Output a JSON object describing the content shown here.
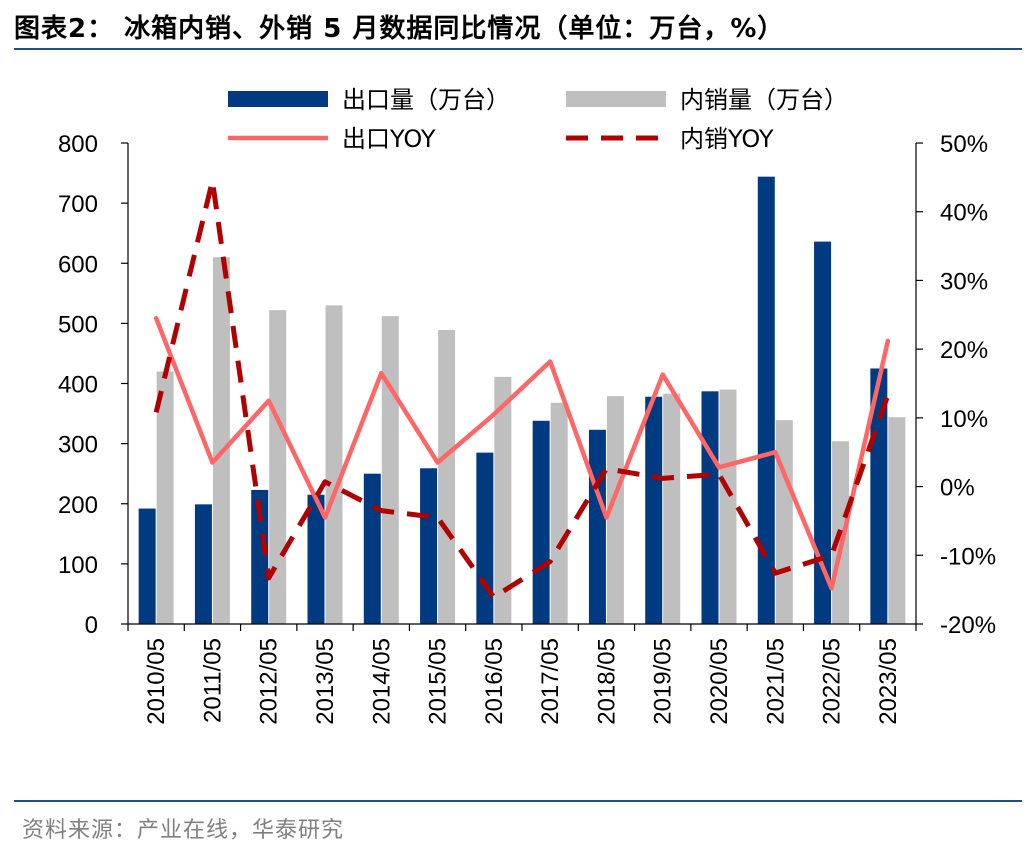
{
  "title": "图表2： 冰箱内销、外销 5 月数据同比情况（单位：万台，%）",
  "source": "资料来源：产业在线，华泰研究",
  "colors": {
    "export_bar": "#003a80",
    "domestic_bar": "#bfbfbf",
    "export_yoy": "#ff6666",
    "domestic_yoy": "#b00000",
    "rule": "#1f4e8c"
  },
  "chart_data": {
    "type": "bar",
    "categories": [
      "2010/05",
      "2011/05",
      "2012/05",
      "2013/05",
      "2014/05",
      "2015/05",
      "2016/05",
      "2017/05",
      "2018/05",
      "2019/05",
      "2020/05",
      "2021/05",
      "2022/05",
      "2023/05"
    ],
    "series": [
      {
        "name": "出口量（万台）",
        "type": "bar",
        "axis": "left",
        "values": [
          192,
          199,
          223,
          215,
          250,
          259,
          285,
          338,
          323,
          378,
          387,
          744,
          636,
          425
        ]
      },
      {
        "name": "内销量（万台）",
        "type": "bar",
        "axis": "left",
        "values": [
          420,
          610,
          522,
          530,
          512,
          489,
          411,
          368,
          379,
          383,
          390,
          339,
          304,
          344
        ]
      },
      {
        "name": "出口YOY",
        "type": "line",
        "axis": "right",
        "style": "solid",
        "values": [
          24.5,
          3.5,
          12.5,
          -4.5,
          16.5,
          3.5,
          10.5,
          18.2,
          -4.5,
          16.3,
          2.8,
          5.0,
          -14.8,
          21.2
        ]
      },
      {
        "name": "内销YOY",
        "type": "line",
        "axis": "right",
        "style": "dashed",
        "values": [
          10.8,
          44.5,
          -13.3,
          0.7,
          -3.5,
          -4.5,
          -16.1,
          -10.9,
          2.6,
          1.2,
          1.8,
          -12.6,
          -10.0,
          13.3
        ]
      }
    ],
    "left_axis": {
      "ylim": [
        0,
        800
      ],
      "ticks": [
        "0",
        "100",
        "200",
        "300",
        "400",
        "500",
        "600",
        "700",
        "800"
      ]
    },
    "right_axis": {
      "ylim": [
        -20,
        50
      ],
      "ticks": [
        "-20%",
        "-10%",
        "0%",
        "10%",
        "20%",
        "30%",
        "40%",
        "50%"
      ]
    },
    "legend_position": "top",
    "grid": false
  }
}
